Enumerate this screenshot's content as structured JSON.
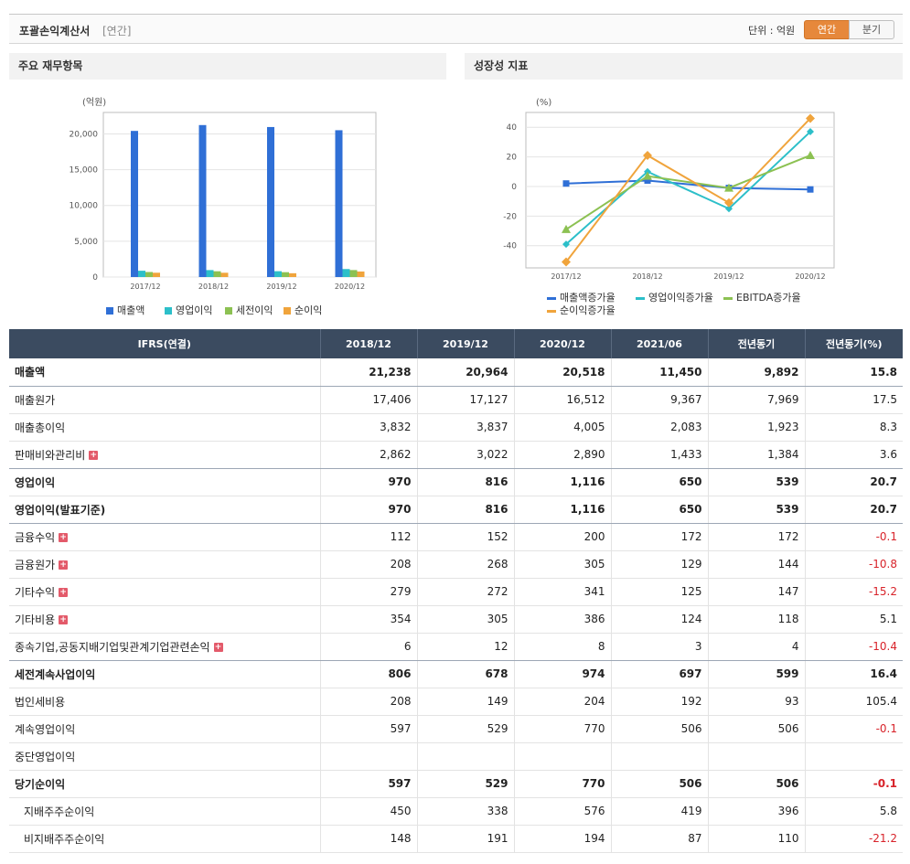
{
  "header": {
    "title": "포괄손익계산서",
    "subtitle": "[연간]",
    "unit": "단위 : 억원",
    "tabs": [
      "연간",
      "분기"
    ]
  },
  "left_panel": {
    "title": "주요 재무항목"
  },
  "right_panel": {
    "title": "성장성 지표"
  },
  "chart_data": [
    {
      "type": "bar",
      "ylabel": "(억원)",
      "categories": [
        "2017/12",
        "2018/12",
        "2019/12",
        "2020/12"
      ],
      "ylim": [
        0,
        23000
      ],
      "yticks": [
        0,
        5000,
        10000,
        15000,
        20000
      ],
      "ytick_labels": [
        "0",
        "5,000",
        "10,000",
        "15,000",
        "20,000"
      ],
      "series": [
        {
          "name": "매출액",
          "color": "#2f6fd6",
          "values": [
            20420,
            21238,
            20964,
            20518
          ]
        },
        {
          "name": "영업이익",
          "color": "#2cbfc9",
          "values": [
            880,
            970,
            816,
            1116
          ]
        },
        {
          "name": "세전이익",
          "color": "#8cc152",
          "values": [
            700,
            806,
            678,
            974
          ]
        },
        {
          "name": "순이익",
          "color": "#f0a43c",
          "values": [
            600,
            597,
            529,
            770
          ]
        }
      ]
    },
    {
      "type": "line",
      "ylabel": "(%)",
      "categories": [
        "2017/12",
        "2018/12",
        "2019/12",
        "2020/12"
      ],
      "ylim": [
        -55,
        50
      ],
      "yticks": [
        -40,
        -20,
        0,
        20,
        40
      ],
      "ytick_labels": [
        "-40",
        "-20",
        "0",
        "20",
        "40"
      ],
      "series": [
        {
          "name": "매출액증가율",
          "color": "#2f6fd6",
          "values": [
            2,
            4,
            -1,
            -2
          ]
        },
        {
          "name": "영업이익증가율",
          "color": "#2cbfc9",
          "values": [
            -39,
            10,
            -15,
            37
          ]
        },
        {
          "name": "EBITDA증가율",
          "color": "#8cc152",
          "values": [
            -29,
            7,
            -1,
            21
          ]
        },
        {
          "name": "순이익증가율",
          "color": "#f0a43c",
          "values": [
            -51,
            21,
            -11,
            46
          ]
        }
      ]
    }
  ],
  "table": {
    "columns": [
      "IFRS(연결)",
      "2018/12",
      "2019/12",
      "2020/12",
      "2021/06",
      "전년동기",
      "전년동기(%)"
    ],
    "rows": [
      {
        "label": "매출액",
        "values": [
          "21,238",
          "20,964",
          "20,518",
          "11,450",
          "9,892",
          "15.8"
        ],
        "bold": true,
        "plus": false,
        "neg": false,
        "grp": true,
        "indent": false
      },
      {
        "label": "매출원가",
        "values": [
          "17,406",
          "17,127",
          "16,512",
          "9,367",
          "7,969",
          "17.5"
        ],
        "bold": false,
        "plus": false,
        "neg": false,
        "grp": false,
        "indent": false
      },
      {
        "label": "매출총이익",
        "values": [
          "3,832",
          "3,837",
          "4,005",
          "2,083",
          "1,923",
          "8.3"
        ],
        "bold": false,
        "plus": false,
        "neg": false,
        "grp": false,
        "indent": false
      },
      {
        "label": "판매비와관리비",
        "values": [
          "2,862",
          "3,022",
          "2,890",
          "1,433",
          "1,384",
          "3.6"
        ],
        "bold": false,
        "plus": true,
        "neg": false,
        "grp": true,
        "indent": false
      },
      {
        "label": "영업이익",
        "values": [
          "970",
          "816",
          "1,116",
          "650",
          "539",
          "20.7"
        ],
        "bold": true,
        "plus": false,
        "neg": false,
        "grp": false,
        "indent": false
      },
      {
        "label": "영업이익(발표기준)",
        "values": [
          "970",
          "816",
          "1,116",
          "650",
          "539",
          "20.7"
        ],
        "bold": true,
        "plus": false,
        "neg": false,
        "grp": true,
        "indent": false
      },
      {
        "label": "금융수익",
        "values": [
          "112",
          "152",
          "200",
          "172",
          "172",
          "-0.1"
        ],
        "bold": false,
        "plus": true,
        "neg": true,
        "grp": false,
        "indent": false
      },
      {
        "label": "금융원가",
        "values": [
          "208",
          "268",
          "305",
          "129",
          "144",
          "-10.8"
        ],
        "bold": false,
        "plus": true,
        "neg": true,
        "grp": false,
        "indent": false
      },
      {
        "label": "기타수익",
        "values": [
          "279",
          "272",
          "341",
          "125",
          "147",
          "-15.2"
        ],
        "bold": false,
        "plus": true,
        "neg": true,
        "grp": false,
        "indent": false
      },
      {
        "label": "기타비용",
        "values": [
          "354",
          "305",
          "386",
          "124",
          "118",
          "5.1"
        ],
        "bold": false,
        "plus": true,
        "neg": false,
        "grp": false,
        "indent": false
      },
      {
        "label": "종속기업,공동지배기업및관계기업관련손익",
        "values": [
          "6",
          "12",
          "8",
          "3",
          "4",
          "-10.4"
        ],
        "bold": false,
        "plus": true,
        "neg": true,
        "grp": true,
        "indent": false
      },
      {
        "label": "세전계속사업이익",
        "values": [
          "806",
          "678",
          "974",
          "697",
          "599",
          "16.4"
        ],
        "bold": true,
        "plus": false,
        "neg": false,
        "grp": false,
        "indent": false
      },
      {
        "label": "법인세비용",
        "values": [
          "208",
          "149",
          "204",
          "192",
          "93",
          "105.4"
        ],
        "bold": false,
        "plus": false,
        "neg": false,
        "grp": false,
        "indent": false
      },
      {
        "label": "계속영업이익",
        "values": [
          "597",
          "529",
          "770",
          "506",
          "506",
          "-0.1"
        ],
        "bold": false,
        "plus": false,
        "neg": true,
        "grp": false,
        "indent": false
      },
      {
        "label": "중단영업이익",
        "values": [
          "",
          "",
          "",
          "",
          "",
          ""
        ],
        "bold": false,
        "plus": false,
        "neg": false,
        "grp": false,
        "indent": false
      },
      {
        "label": "당기순이익",
        "values": [
          "597",
          "529",
          "770",
          "506",
          "506",
          "-0.1"
        ],
        "bold": true,
        "plus": false,
        "neg": true,
        "grp": false,
        "indent": false
      },
      {
        "label": "지배주주순이익",
        "values": [
          "450",
          "338",
          "576",
          "419",
          "396",
          "5.8"
        ],
        "bold": false,
        "plus": false,
        "neg": false,
        "grp": false,
        "indent": true
      },
      {
        "label": "비지배주주순이익",
        "values": [
          "148",
          "191",
          "194",
          "87",
          "110",
          "-21.2"
        ],
        "bold": false,
        "plus": false,
        "neg": true,
        "grp": false,
        "indent": true
      }
    ]
  }
}
